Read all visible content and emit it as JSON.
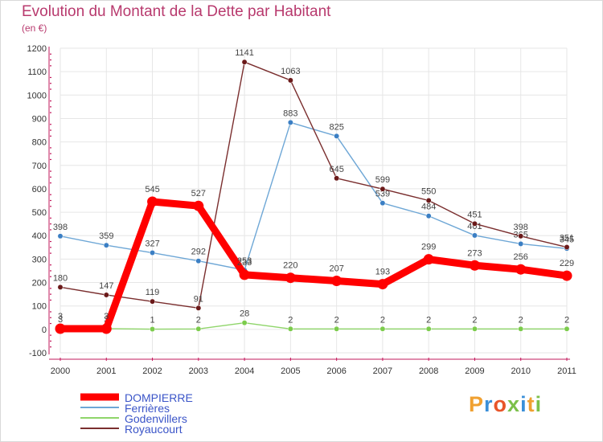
{
  "title": "Evolution du Montant de la Dette par Habitant",
  "unit": "(en €)",
  "brand": "Proxiti",
  "colors": {
    "title": "#b83a6e",
    "axis": "#c2185b",
    "grid": "#e6e6e6",
    "label": "#444444"
  },
  "chart_data": {
    "type": "line",
    "title": "Evolution du Montant de la Dette par Habitant",
    "ylabel": "(en €)",
    "xlabel": "",
    "categories": [
      "2000",
      "2001",
      "2002",
      "2003",
      "2004",
      "2005",
      "2006",
      "2007",
      "2008",
      "2009",
      "2010",
      "2011"
    ],
    "yticks": [
      -100,
      0,
      100,
      200,
      300,
      400,
      500,
      600,
      700,
      800,
      900,
      1000,
      1100,
      1200
    ],
    "ylim": [
      -100,
      1200
    ],
    "grid": true,
    "legend_position": "bottom-left",
    "series": [
      {
        "name": "DOMPIERRE",
        "color": "#ff0000",
        "point_color": "#ff0000",
        "label_color": "#444444",
        "emphasis": true,
        "values": [
          3,
          3,
          545,
          527,
          233,
          220,
          207,
          193,
          299,
          273,
          256,
          229
        ]
      },
      {
        "name": "Ferrières",
        "color": "#6ea7d6",
        "point_color": "#3b7fc4",
        "label_color": "#444444",
        "emphasis": false,
        "values": [
          398,
          359,
          327,
          292,
          253,
          883,
          825,
          539,
          484,
          401,
          365,
          345
        ]
      },
      {
        "name": "Godenvillers",
        "color": "#8fd56a",
        "point_color": "#7ccc4c",
        "label_color": "#444444",
        "emphasis": false,
        "values": [
          3,
          3,
          1,
          2,
          28,
          2,
          2,
          2,
          2,
          2,
          2,
          2
        ]
      },
      {
        "name": "Royaucourt",
        "color": "#7a2e2e",
        "point_color": "#6b1a1a",
        "label_color": "#444444",
        "emphasis": false,
        "values": [
          180,
          147,
          119,
          91,
          1141,
          1063,
          645,
          599,
          550,
          451,
          398,
          351
        ]
      }
    ]
  }
}
